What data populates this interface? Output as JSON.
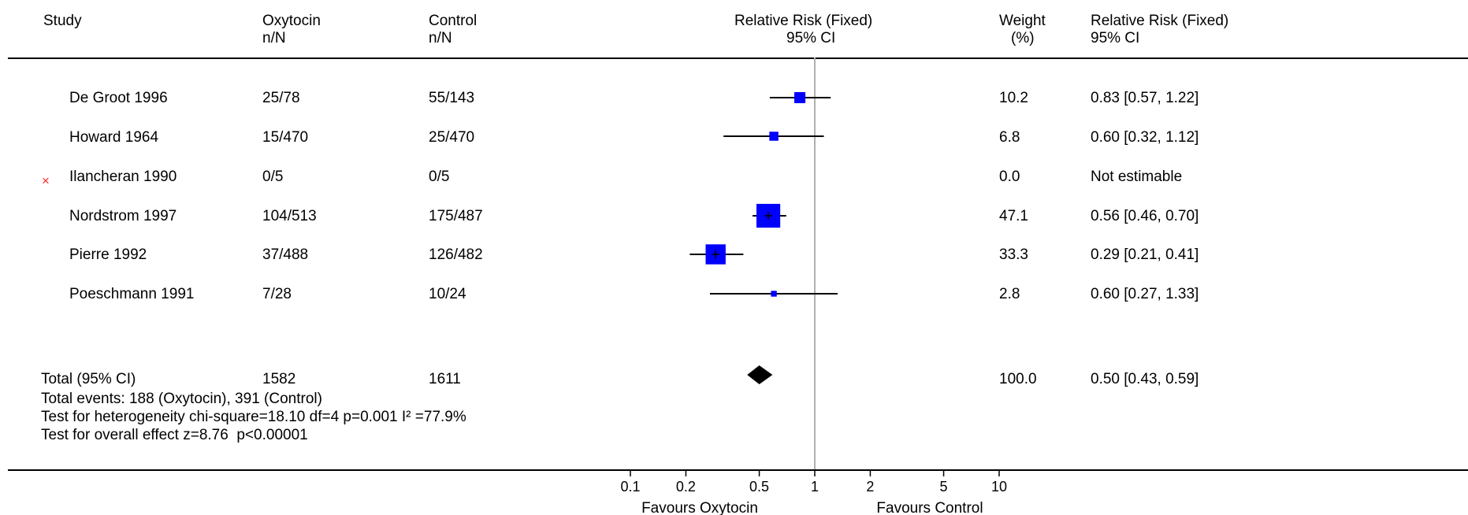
{
  "headers": {
    "study": "Study",
    "oxytocin": [
      "Oxytocin",
      "n/N"
    ],
    "control": [
      "Control",
      "n/N"
    ],
    "rr_plot": [
      "Relative Risk (Fixed)",
      "95% CI"
    ],
    "weight": [
      "Weight",
      "(%)"
    ],
    "rr_text": [
      "Relative Risk (Fixed)",
      "95% CI"
    ]
  },
  "excluded_marker": "×",
  "total": {
    "label": "Total (95% CI)",
    "oxytocin": "1582",
    "control": "1611",
    "weight": "100.0",
    "ci_text": "0.50 [0.43, 0.59]",
    "notes": [
      "Total events: 188 (Oxytocin), 391 (Control)",
      "Test for heterogeneity chi-square=18.10 df=4 p=0.001 I² =77.9%",
      "Test for overall effect z=8.76  p<0.00001"
    ]
  },
  "axis": {
    "tick_labels": [
      "0.1",
      "0.2",
      "0.5",
      "1",
      "2",
      "5",
      "10"
    ],
    "left_label": "Favours Oxytocin",
    "right_label": "Favours Control"
  },
  "chart_data": {
    "type": "forest",
    "x_scale": "log",
    "xlim": [
      0.1,
      10
    ],
    "ticks": [
      0.1,
      0.2,
      0.5,
      1,
      2,
      5,
      10
    ],
    "reference_line": 1,
    "studies": [
      {
        "name": "De Groot 1996",
        "oxytocin": "25/78",
        "control": "55/143",
        "weight": "10.2",
        "ci_text": "0.83 [0.57, 1.22]",
        "rr": 0.83,
        "lo": 0.57,
        "hi": 1.22,
        "weight_value": 10.2,
        "excluded": false
      },
      {
        "name": "Howard 1964",
        "oxytocin": "15/470",
        "control": "25/470",
        "weight": "6.8",
        "ci_text": "0.60 [0.32, 1.12]",
        "rr": 0.6,
        "lo": 0.32,
        "hi": 1.12,
        "weight_value": 6.8,
        "excluded": false
      },
      {
        "name": "Ilancheran 1990",
        "oxytocin": "0/5",
        "control": "0/5",
        "weight": "0.0",
        "ci_text": "Not estimable",
        "rr": null,
        "lo": null,
        "hi": null,
        "weight_value": 0,
        "excluded": true
      },
      {
        "name": "Nordstrom 1997",
        "oxytocin": "104/513",
        "control": "175/487",
        "weight": "47.1",
        "ci_text": "0.56 [0.46, 0.70]",
        "rr": 0.56,
        "lo": 0.46,
        "hi": 0.7,
        "weight_value": 47.1,
        "excluded": false
      },
      {
        "name": "Pierre 1992",
        "oxytocin": "37/488",
        "control": "126/482",
        "weight": "33.3",
        "ci_text": "0.29 [0.21, 0.41]",
        "rr": 0.29,
        "lo": 0.21,
        "hi": 0.41,
        "weight_value": 33.3,
        "excluded": false
      },
      {
        "name": "Poeschmann 1991",
        "oxytocin": "7/28",
        "control": "10/24",
        "weight": "2.8",
        "ci_text": "0.60 [0.27, 1.33]",
        "rr": 0.6,
        "lo": 0.27,
        "hi": 1.33,
        "weight_value": 2.8,
        "excluded": false
      }
    ],
    "pooled": {
      "rr": 0.5,
      "lo": 0.43,
      "hi": 0.59
    },
    "colors": {
      "study_box": "#0000ff",
      "pooled_diamond": "#000000",
      "excluded_marker": "#ff2a2a",
      "reference_line": "#b0b0b0"
    }
  }
}
